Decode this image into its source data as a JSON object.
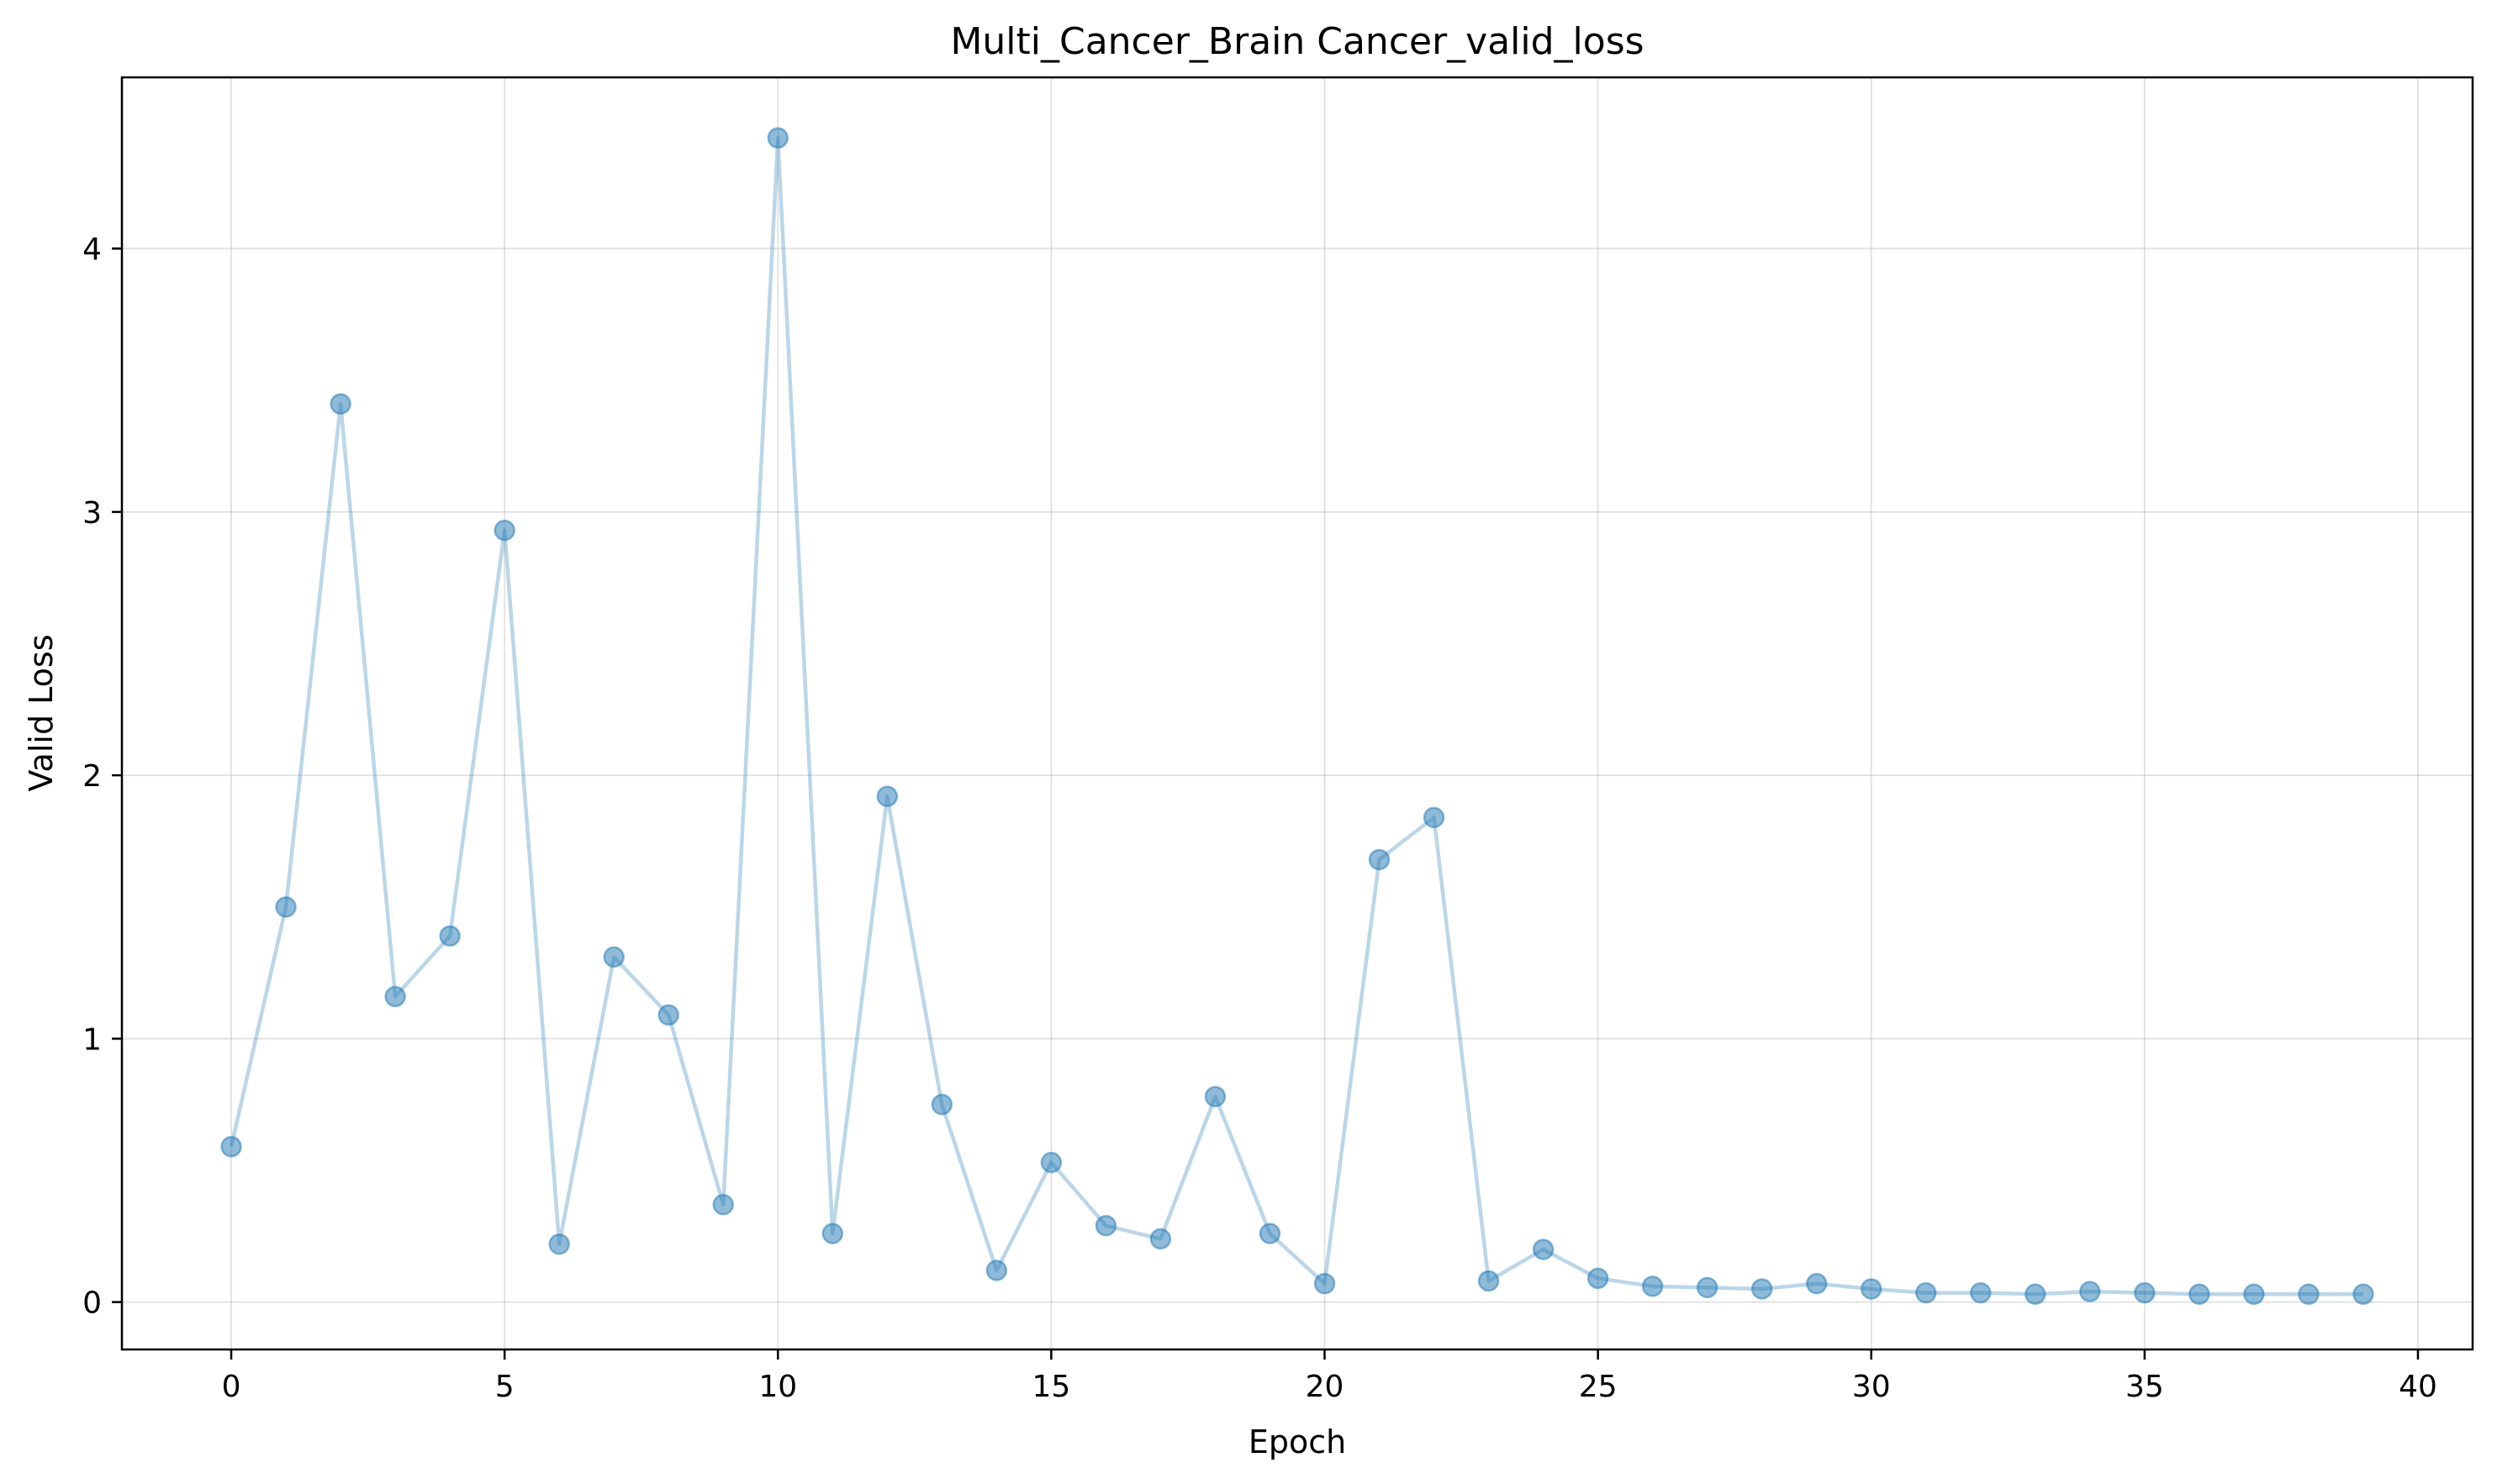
{
  "chart_data": {
    "type": "line",
    "title": "Multi_Cancer_Brain Cancer_valid_loss",
    "xlabel": "Epoch",
    "ylabel": "Valid Loss",
    "xlim": [
      -2,
      41
    ],
    "ylim": [
      -0.18,
      4.65
    ],
    "xticks": [
      0,
      5,
      10,
      15,
      20,
      25,
      30,
      35,
      40
    ],
    "yticks": [
      0,
      1,
      2,
      3,
      4
    ],
    "grid": true,
    "series": [
      {
        "color": "#1f77b4",
        "x": [
          0,
          1,
          2,
          3,
          4,
          5,
          6,
          7,
          8,
          9,
          10,
          11,
          12,
          13,
          14,
          15,
          16,
          17,
          18,
          19,
          20,
          21,
          22,
          23,
          24,
          25,
          26,
          27,
          28,
          29,
          30,
          31,
          32,
          33,
          34,
          35,
          36,
          37,
          38,
          39
        ],
        "y": [
          0.59,
          1.5,
          3.41,
          1.16,
          1.39,
          2.93,
          0.22,
          1.31,
          1.09,
          0.37,
          4.42,
          0.26,
          1.92,
          0.75,
          0.12,
          0.53,
          0.29,
          0.24,
          0.78,
          0.26,
          0.07,
          1.68,
          1.84,
          0.08,
          0.2,
          0.09,
          0.06,
          0.055,
          0.05,
          0.07,
          0.05,
          0.035,
          0.035,
          0.03,
          0.04,
          0.035,
          0.03,
          0.03,
          0.03,
          0.03
        ]
      }
    ]
  }
}
